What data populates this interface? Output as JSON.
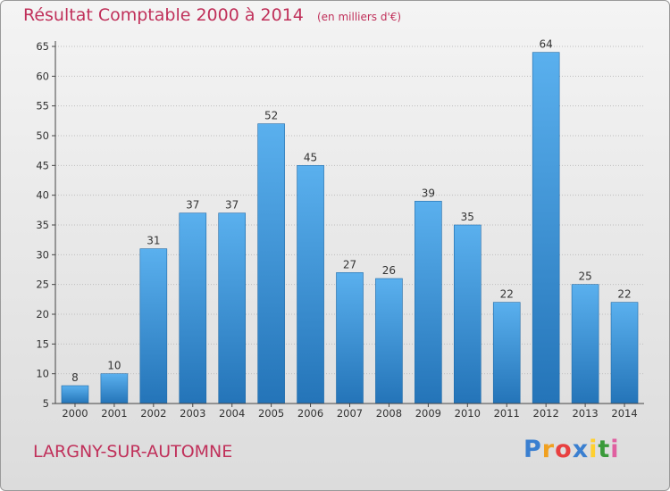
{
  "title": "Résultat Comptable 2000 à 2014",
  "unit": "(en milliers d'€)",
  "town": "LARGNY-SUR-AUTOMNE",
  "brand": {
    "letters": [
      "P",
      "r",
      "o",
      "x",
      "i",
      "t",
      "i"
    ],
    "colors": [
      "#3a7fd0",
      "#f0a020",
      "#e84040",
      "#3a7fd0",
      "#ffd030",
      "#3a9a3a",
      "#e060a0"
    ]
  },
  "colors": {
    "title": "#c0305a",
    "bar_light": "#5ab0ee",
    "bar_dark": "#2474b8",
    "axis": "#444444",
    "grid": "#bdbdbd"
  },
  "chart_data": {
    "type": "bar",
    "categories": [
      "2000",
      "2001",
      "2002",
      "2003",
      "2004",
      "2005",
      "2006",
      "2007",
      "2008",
      "2009",
      "2010",
      "2011",
      "2012",
      "2013",
      "2014"
    ],
    "values": [
      8,
      10,
      31,
      37,
      37,
      52,
      45,
      27,
      26,
      39,
      35,
      22,
      64,
      25,
      22
    ],
    "title": "Résultat Comptable 2000 à 2014",
    "xlabel": "",
    "ylabel": "",
    "ylim": [
      5,
      65
    ],
    "yticks": [
      5,
      10,
      15,
      20,
      25,
      30,
      35,
      40,
      45,
      50,
      55,
      60,
      65
    ],
    "grid": "horizontal"
  }
}
